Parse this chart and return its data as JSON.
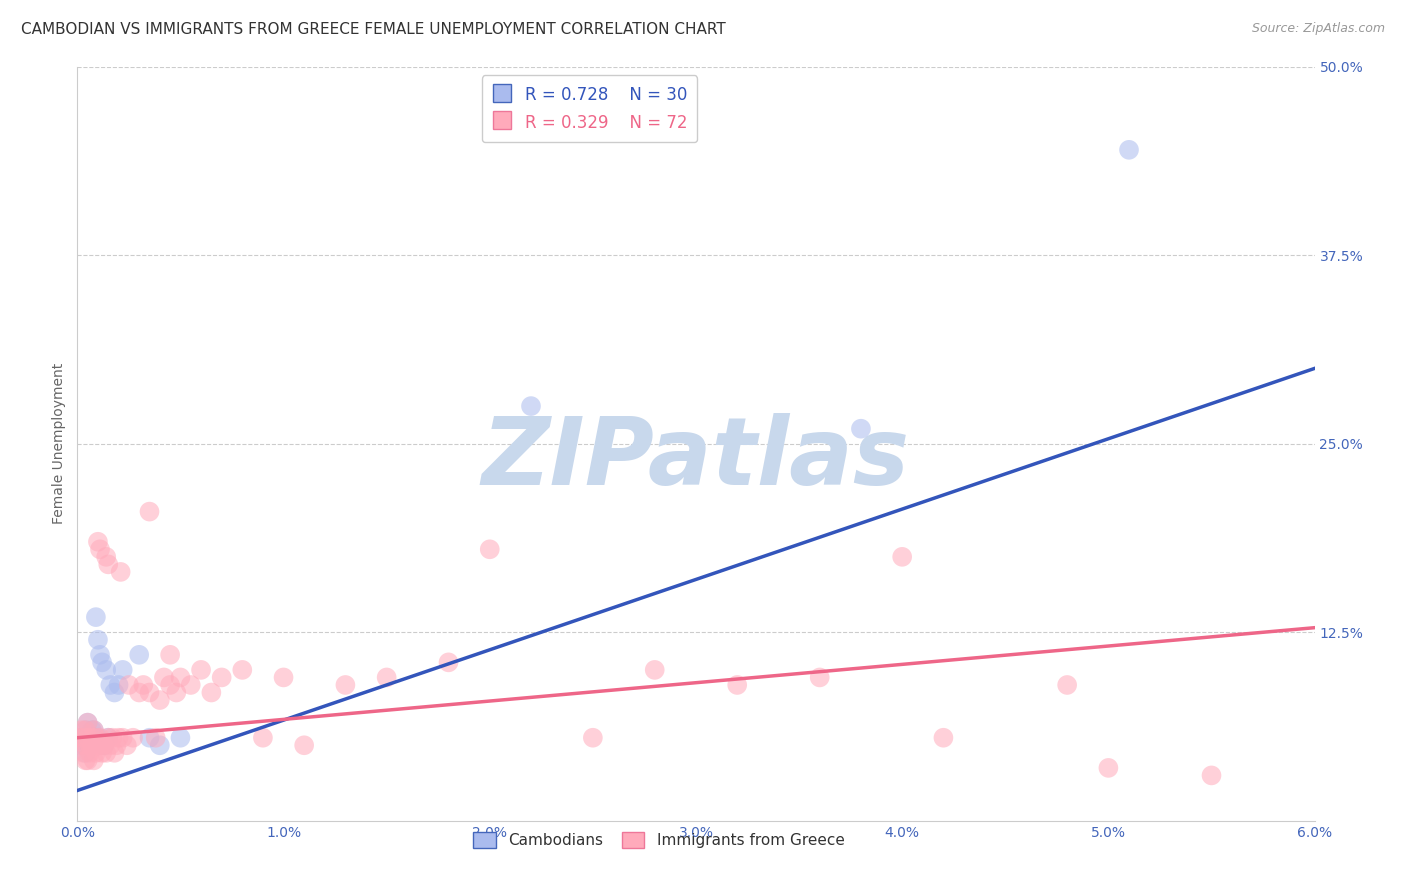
{
  "title": "CAMBODIAN VS IMMIGRANTS FROM GREECE FEMALE UNEMPLOYMENT CORRELATION CHART",
  "source": "Source: ZipAtlas.com",
  "ylabel": "Female Unemployment",
  "xlim": [
    0.0,
    6.0
  ],
  "ylim": [
    0.0,
    50.0
  ],
  "xticks": [
    0.0,
    1.0,
    2.0,
    3.0,
    4.0,
    5.0,
    6.0
  ],
  "xtick_labels": [
    "0.0%",
    "1.0%",
    "2.0%",
    "3.0%",
    "4.0%",
    "5.0%",
    "6.0%"
  ],
  "yticks": [
    0.0,
    12.5,
    25.0,
    37.5,
    50.0
  ],
  "ytick_labels": [
    "",
    "12.5%",
    "25.0%",
    "37.5%",
    "50.0%"
  ],
  "blue_R": "0.728",
  "blue_N": "30",
  "pink_R": "0.329",
  "pink_N": "72",
  "blue_fill": "#AABBEE",
  "pink_fill": "#FFAABB",
  "blue_edge": "#4466BB",
  "pink_edge": "#EE7799",
  "blue_line_color": "#3355BB",
  "pink_line_color": "#EE6688",
  "watermark": "ZIPatlas",
  "watermark_color": "#C8D8EC",
  "cambodians_x": [
    0.02,
    0.03,
    0.04,
    0.04,
    0.05,
    0.05,
    0.06,
    0.07,
    0.07,
    0.08,
    0.08,
    0.09,
    0.1,
    0.1,
    0.11,
    0.12,
    0.13,
    0.14,
    0.15,
    0.16,
    0.18,
    0.2,
    0.22,
    0.3,
    0.35,
    0.4,
    0.5,
    2.2,
    3.8,
    5.1
  ],
  "cambodians_y": [
    5.5,
    5.0,
    6.0,
    4.5,
    5.5,
    6.5,
    5.0,
    6.0,
    5.5,
    6.0,
    5.5,
    13.5,
    5.5,
    12.0,
    11.0,
    10.5,
    5.0,
    10.0,
    5.5,
    9.0,
    8.5,
    9.0,
    10.0,
    11.0,
    5.5,
    5.0,
    5.5,
    27.5,
    26.0,
    44.5
  ],
  "greece_x": [
    0.01,
    0.02,
    0.02,
    0.03,
    0.03,
    0.04,
    0.04,
    0.04,
    0.05,
    0.05,
    0.05,
    0.06,
    0.06,
    0.07,
    0.07,
    0.08,
    0.08,
    0.09,
    0.09,
    0.1,
    0.1,
    0.11,
    0.11,
    0.12,
    0.12,
    0.13,
    0.14,
    0.14,
    0.15,
    0.15,
    0.16,
    0.17,
    0.18,
    0.19,
    0.2,
    0.21,
    0.22,
    0.24,
    0.25,
    0.27,
    0.3,
    0.32,
    0.35,
    0.38,
    0.4,
    0.42,
    0.45,
    0.48,
    0.5,
    0.55,
    0.6,
    0.65,
    0.7,
    0.8,
    0.9,
    1.0,
    1.1,
    1.3,
    1.5,
    1.8,
    2.0,
    2.5,
    2.8,
    3.2,
    3.6,
    4.0,
    4.2,
    4.8,
    5.0,
    5.5,
    0.35,
    0.45
  ],
  "greece_y": [
    5.5,
    5.0,
    6.0,
    4.5,
    5.5,
    5.0,
    4.0,
    6.0,
    5.5,
    4.0,
    6.5,
    5.0,
    4.5,
    5.5,
    5.0,
    4.0,
    6.0,
    5.5,
    4.5,
    5.0,
    18.5,
    5.5,
    18.0,
    5.0,
    4.5,
    5.0,
    4.5,
    17.5,
    5.5,
    17.0,
    5.0,
    5.5,
    4.5,
    5.0,
    5.5,
    16.5,
    5.5,
    5.0,
    9.0,
    5.5,
    8.5,
    9.0,
    8.5,
    5.5,
    8.0,
    9.5,
    9.0,
    8.5,
    9.5,
    9.0,
    10.0,
    8.5,
    9.5,
    10.0,
    5.5,
    9.5,
    5.0,
    9.0,
    9.5,
    10.5,
    18.0,
    5.5,
    10.0,
    9.0,
    9.5,
    17.5,
    5.5,
    9.0,
    3.5,
    3.0,
    20.5,
    11.0
  ],
  "blue_line_x": [
    0.0,
    6.0
  ],
  "blue_line_y": [
    2.0,
    30.0
  ],
  "pink_line_x": [
    0.0,
    6.0
  ],
  "pink_line_y": [
    5.5,
    12.8
  ],
  "background_color": "#FFFFFF",
  "grid_color": "#CCCCCC",
  "title_fontsize": 11,
  "axis_label_fontsize": 10,
  "tick_fontsize": 10,
  "legend_fontsize": 12
}
